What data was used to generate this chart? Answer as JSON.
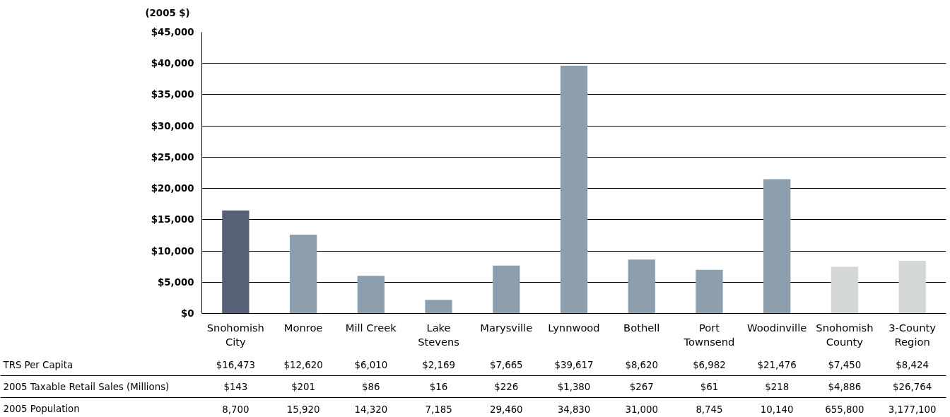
{
  "chart_data": {
    "type": "bar",
    "ylabel": "(2005 $)",
    "categories": [
      "Snohomish City",
      "Monroe",
      "Mill Creek",
      "Lake Stevens",
      "Marysville",
      "Lynnwood",
      "Bothell",
      "Port Townsend",
      "Woodinville",
      "Snohomish County",
      "3-County Region"
    ],
    "series": [
      {
        "name": "TRS Per Capita",
        "colors": [
          "#566077",
          "#8d9fad",
          "#8d9fad",
          "#8d9fad",
          "#8d9fad",
          "#8d9fad",
          "#8d9fad",
          "#8d9fad",
          "#8d9fad",
          "#d3d7d6",
          "#d3d7d6"
        ],
        "values": [
          16473,
          12620,
          6010,
          2169,
          7665,
          39617,
          8620,
          6982,
          21476,
          7450,
          8424
        ],
        "value_labels": [
          "$16,473",
          "$12,620",
          "$6,010",
          "$2,169",
          "$7,665",
          "$39,617",
          "$8,620",
          "$6,982",
          "$21,476",
          "$7,450",
          "$8,424"
        ]
      }
    ],
    "ylim": [
      0,
      45000
    ],
    "yticks": [
      {
        "value": 0,
        "label": "$0"
      },
      {
        "value": 5000,
        "label": "$5,000"
      },
      {
        "value": 10000,
        "label": "$10,000"
      },
      {
        "value": 15000,
        "label": "$15,000"
      },
      {
        "value": 20000,
        "label": "$20,000"
      },
      {
        "value": 25000,
        "label": "$25,000"
      },
      {
        "value": 30000,
        "label": "$30,000"
      },
      {
        "value": 35000,
        "label": "$35,000"
      },
      {
        "value": 40000,
        "label": "$40,000"
      },
      {
        "value": 45000,
        "label": "$45,000"
      }
    ],
    "grid": "y",
    "annotations": [
      "2005 Taxable Retail Sales (Millions)",
      "$143",
      "$201",
      "$86",
      "$16",
      "$226",
      "$1,380",
      "$267",
      "$61",
      "$218",
      "$4,886",
      "$26,764",
      "2005 Population",
      "8,700",
      "15,920",
      "14,320",
      "7,185",
      "29,460",
      "34,830",
      "31,000",
      "8,745",
      "10,140",
      "655,800",
      "3,177,100"
    ]
  }
}
